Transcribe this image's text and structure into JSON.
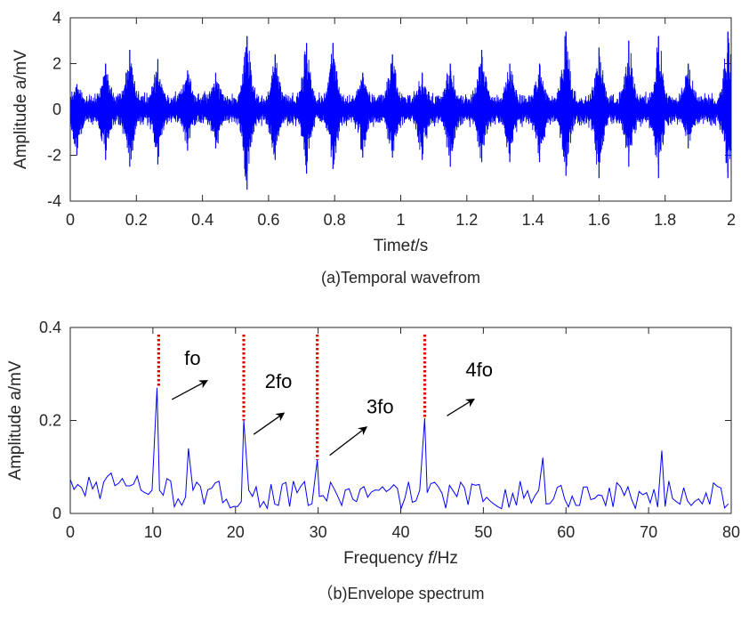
{
  "chart_data": [
    {
      "type": "line",
      "caption": "(a)Temporal wavefrom",
      "xlabel_prefix": "Time",
      "xlabel_var": "t",
      "xlabel_suffix": "/s",
      "ylabel": "Amplitude a/mV",
      "xlim": [
        0,
        2
      ],
      "ylim": [
        -4,
        4
      ],
      "xticks": [
        0,
        0.2,
        0.4,
        0.6,
        0.8,
        1,
        1.2,
        1.4,
        1.6,
        1.8,
        2
      ],
      "yticks": [
        -4,
        -2,
        0,
        2,
        4
      ],
      "grid": false,
      "color": "#0000FF",
      "series": [
        {
          "burst_times": [
            0.02,
            0.107,
            0.18,
            0.265,
            0.355,
            0.44,
            0.535,
            0.62,
            0.715,
            0.795,
            0.885,
            0.975,
            1.065,
            1.15,
            1.245,
            1.33,
            1.42,
            1.5,
            1.6,
            1.69,
            1.78,
            1.87,
            1.99
          ],
          "burst_peaks": [
            1.1,
            2.0,
            2.6,
            2.2,
            1.7,
            1.6,
            3.2,
            2.4,
            2.9,
            2.9,
            1.6,
            2.4,
            1.6,
            2.0,
            2.6,
            2.0,
            2.0,
            3.4,
            2.7,
            3.0,
            3.2,
            2.0,
            3.4
          ],
          "burst_troughs": [
            -2.0,
            -2.2,
            -2.5,
            -2.4,
            -1.8,
            -1.7,
            -3.5,
            -2.2,
            -2.8,
            -2.6,
            -2.1,
            -2.1,
            -2.2,
            -2.5,
            -2.3,
            -2.3,
            -2.3,
            -2.9,
            -3.0,
            -2.5,
            -3.0,
            -1.7,
            -3.0
          ],
          "noise_level": 0.8
        }
      ]
    },
    {
      "type": "line",
      "caption": "（b)Envelope spectrum",
      "xlabel_prefix": "Frequency ",
      "xlabel_var": "f",
      "xlabel_suffix": "/Hz",
      "ylabel": "Amplitude a/mV",
      "xlim": [
        0,
        80
      ],
      "ylim": [
        0,
        0.4
      ],
      "xticks": [
        0,
        10,
        20,
        30,
        40,
        50,
        60,
        70,
        80
      ],
      "yticks": [
        0,
        0.2,
        0.4
      ],
      "grid": false,
      "color": "#0000FF",
      "series": [
        {
          "peaks": [
            {
              "x": 10.5,
              "y": 0.27
            },
            {
              "x": 14.3,
              "y": 0.14
            },
            {
              "x": 21.0,
              "y": 0.2
            },
            {
              "x": 29.9,
              "y": 0.115
            },
            {
              "x": 42.9,
              "y": 0.205
            },
            {
              "x": 57.2,
              "y": 0.12
            },
            {
              "x": 71.6,
              "y": 0.135
            }
          ],
          "baseline_min": 0.01,
          "baseline_max": 0.07
        }
      ],
      "marker_lines": [
        10.7,
        21.0,
        29.9,
        42.9
      ],
      "marker_color": "#E00000",
      "annotations": [
        {
          "text": "fo",
          "x": 14.8,
          "y": 0.32,
          "arrow_from": [
            12.3,
            0.245
          ],
          "arrow_to": [
            16.5,
            0.285
          ]
        },
        {
          "text": "2fo",
          "x": 25.2,
          "y": 0.27,
          "arrow_from": [
            22.2,
            0.17
          ],
          "arrow_to": [
            25.8,
            0.215
          ]
        },
        {
          "text": "3fo",
          "x": 37.5,
          "y": 0.215,
          "arrow_from": [
            31.4,
            0.125
          ],
          "arrow_to": [
            35.8,
            0.185
          ]
        },
        {
          "text": "4fo",
          "x": 49.5,
          "y": 0.295,
          "arrow_from": [
            45.6,
            0.21
          ],
          "arrow_to": [
            48.8,
            0.245
          ]
        }
      ]
    }
  ]
}
